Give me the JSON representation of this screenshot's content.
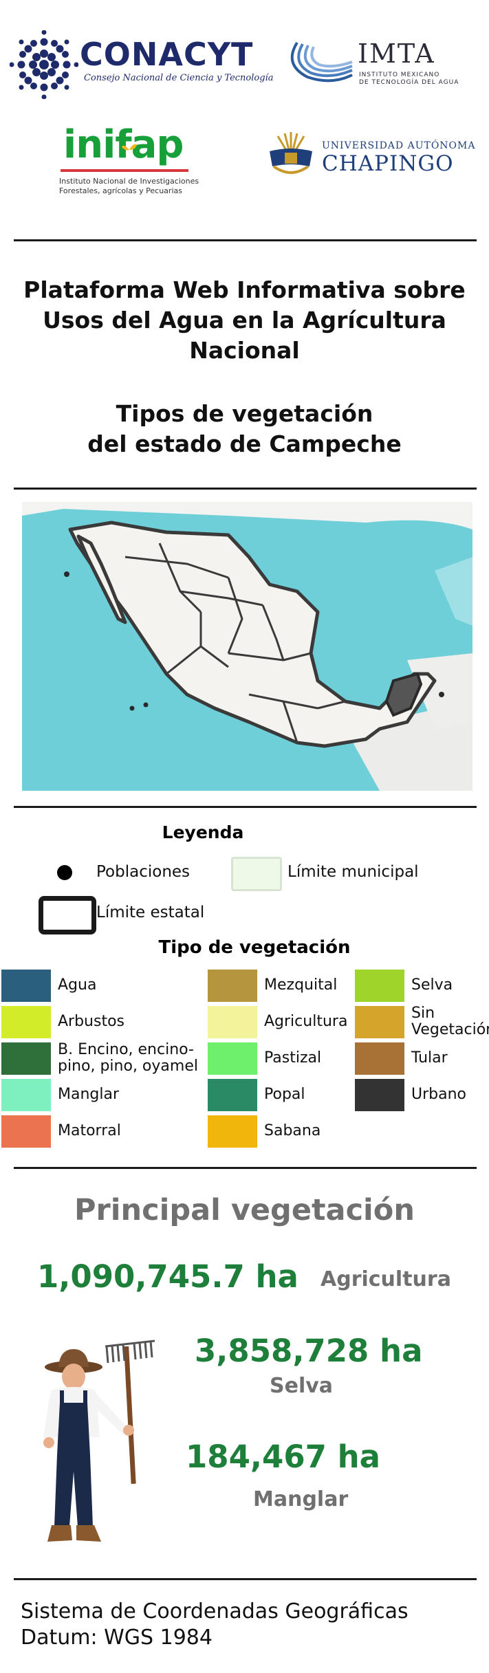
{
  "logos": {
    "conacyt": {
      "name": "CONACYT",
      "subtitle": "Consejo Nacional de Ciencia y Tecnología"
    },
    "imta": {
      "name": "IMTA",
      "subtitle_1": "INSTITUTO MEXICANO",
      "subtitle_2": "DE TECNOLOGÍA DEL AGUA"
    },
    "inifap": {
      "name": "inifap",
      "subtitle_1": "Instituto Nacional de Investigaciones",
      "subtitle_2": "Forestales, agrícolas y Pecuarias"
    },
    "chapingo": {
      "line1": "UNIVERSIDAD AUTÓNOMA",
      "line2": "CHAPINGO"
    }
  },
  "title": {
    "line1": "Plataforma Web Informativa sobre",
    "line2": "Usos del Agua en la Agrícultura",
    "line3": "Nacional"
  },
  "subtitle": {
    "line1": "Tipos de vegetación",
    "line2": "del estado de Campeche"
  },
  "legend": {
    "heading": "Leyenda",
    "poblaciones": "Poblaciones",
    "limite_municipal": "Límite municipal",
    "limite_estatal": "Límite estatal",
    "tipo_heading": "Tipo de vegetación",
    "items": [
      {
        "label": "Agua",
        "color": "#2b5f7e"
      },
      {
        "label": "Arbustos",
        "color": "#d2ec2a"
      },
      {
        "label": "B. Encino, encino-",
        "label2": "pino, pino, oyamel",
        "color": "#2e6f3a"
      },
      {
        "label": "Manglar",
        "color": "#7ef0c0"
      },
      {
        "label": "Matorral",
        "color": "#ec7350"
      },
      {
        "label": "Mezquital",
        "color": "#b5963f"
      },
      {
        "label": "Agricultura",
        "color": "#f3f39b"
      },
      {
        "label": "Pastizal",
        "color": "#6ff06d"
      },
      {
        "label": "Popal",
        "color": "#2b8a66"
      },
      {
        "label": "Sabana",
        "color": "#f1b60c"
      },
      {
        "label": "Selva",
        "color": "#9fd52b"
      },
      {
        "label": "Sin",
        "label2": "Vegetación",
        "color": "#d5a42a"
      },
      {
        "label": "Tular",
        "color": "#a87135"
      },
      {
        "label": "Urbano",
        "color": "#333333"
      }
    ]
  },
  "principal": {
    "heading": "Principal vegetación",
    "items": [
      {
        "value": "1,090,745.7 ha",
        "label": "Agricultura"
      },
      {
        "value": "3,858,728 ha",
        "label": "Selva"
      },
      {
        "value": "184,467  ha",
        "label": "Manglar"
      }
    ]
  },
  "footer": {
    "line1": "Sistema de Coordenadas Geográficas",
    "line2": "Datum: WGS 1984"
  },
  "colors": {
    "accent_green": "#1d7f39",
    "gray_text": "#707070",
    "ocean": "#6fcfd8",
    "highlight_state": "#555555"
  }
}
